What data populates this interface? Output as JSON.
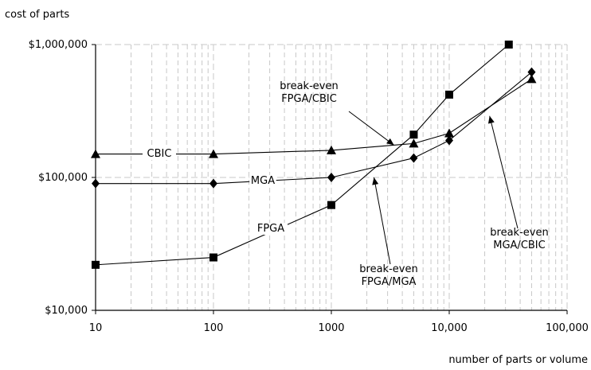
{
  "chart_data": {
    "type": "line",
    "xlabel": "number of parts or volume",
    "ylabel": "cost of parts",
    "x_scale": "log",
    "y_scale": "log",
    "xlim": [
      10,
      100000
    ],
    "ylim": [
      10000,
      1000000
    ],
    "grid": true,
    "x_ticks": [
      10,
      100,
      1000,
      10000,
      100000
    ],
    "x_tick_labels": [
      "10",
      "100",
      "1000",
      "10,000",
      "100,000"
    ],
    "y_ticks": [
      10000,
      100000,
      1000000
    ],
    "y_tick_labels": [
      "$10,000",
      "$100,000",
      "$1,000,000"
    ],
    "series": [
      {
        "name": "CBIC",
        "marker": "triangle",
        "x": [
          10,
          100,
          1000,
          5000,
          10000,
          50000
        ],
        "y": [
          150000,
          150000,
          160000,
          180000,
          215000,
          550000
        ]
      },
      {
        "name": "MGA",
        "marker": "diamond",
        "x": [
          10,
          100,
          1000,
          5000,
          10000,
          50000
        ],
        "y": [
          90000,
          90000,
          100000,
          140000,
          190000,
          620000
        ]
      },
      {
        "name": "FPGA",
        "marker": "square",
        "x": [
          10,
          100,
          1000,
          5000,
          10000,
          32000
        ],
        "y": [
          22000,
          25000,
          62000,
          210000,
          420000,
          1000000
        ]
      }
    ],
    "series_labels": [
      "CBIC",
      "MGA",
      "FPGA"
    ],
    "annotations": [
      {
        "id": "fpga-cbic",
        "lines": [
          "break-even",
          "FPGA/CBIC"
        ],
        "x": 3400,
        "y": 175000
      },
      {
        "id": "fpga-mga",
        "lines": [
          "break-even",
          "FPGA/MGA"
        ],
        "x": 2300,
        "y": 100000
      },
      {
        "id": "mga-cbic",
        "lines": [
          "break-even",
          "MGA/CBIC"
        ],
        "x": 22000,
        "y": 290000
      }
    ]
  }
}
